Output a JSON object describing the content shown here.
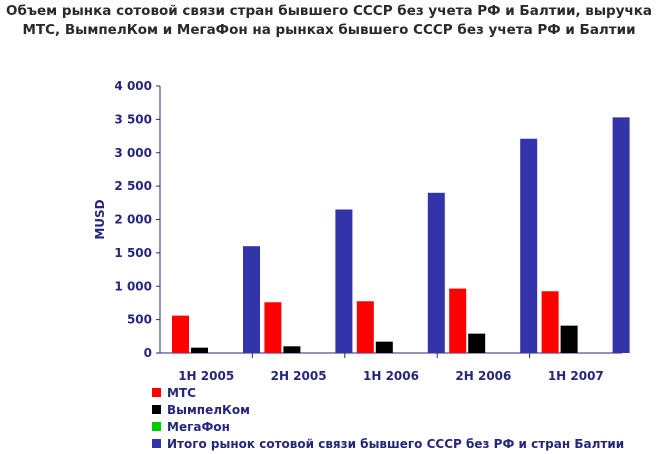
{
  "chart_data": {
    "type": "bar",
    "title_lines": [
      "Объем рынка сотовой связи стран бывшего СССР без учета РФ и Балтии, выручка",
      "МТС, ВымпелКом и МегаФон на рынках бывшего СССР без учета РФ и Балтии"
    ],
    "ylabel": "MUSD",
    "xlabel": "",
    "ylim": [
      0,
      4000
    ],
    "yticks": [
      "0",
      "500",
      "1 000",
      "1 500",
      "2 000",
      "2 500",
      "3 000",
      "3 500",
      "4 000"
    ],
    "categories": [
      "1H 2005",
      "2H 2005",
      "1H 2006",
      "2H 2006",
      "1H 2007"
    ],
    "series": [
      {
        "name": "МТС",
        "color": "#ff0000",
        "values": [
          560,
          760,
          775,
          965,
          925
        ]
      },
      {
        "name": "ВымпелКом",
        "color": "#000000",
        "values": [
          80,
          100,
          170,
          290,
          410
        ]
      },
      {
        "name": "МегаФон",
        "color": "#00cc00",
        "values": [
          0,
          0,
          0,
          0,
          0
        ]
      },
      {
        "name": "Итого рынок сотовой связи бывшего СССР без РФ и стран Балтии",
        "color": "#3333aa",
        "values": [
          1600,
          2150,
          2400,
          3210,
          3530
        ]
      }
    ],
    "grid": false,
    "legend_position": "bottom-left"
  }
}
